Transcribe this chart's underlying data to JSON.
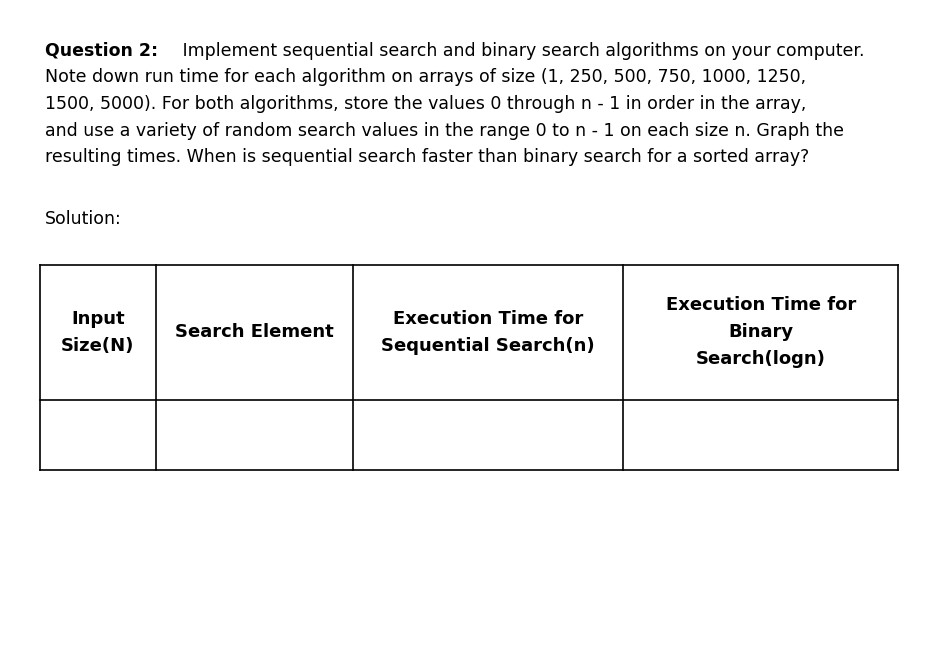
{
  "background_color": "#ffffff",
  "question_bold": "Question 2:",
  "line1_rest": " Implement sequential search and binary search algorithms on your computer.",
  "lines_normal": [
    "Note down run time for each algorithm on arrays of size (1, 250, 500, 750, 1000, 1250,",
    "1500, 5000). For both algorithms, store the values 0 through n - 1 in order in the array,",
    "and use a variety of random search values in the range 0 to n - 1 on each size n. Graph the",
    "resulting times. When is sequential search faster than binary search for a sorted array?"
  ],
  "solution_label": "Solution:",
  "col_headers": [
    [
      "Input",
      "Size(N)"
    ],
    [
      "Search Element"
    ],
    [
      "Execution Time for",
      "Sequential Search(n)"
    ],
    [
      "Execution Time for",
      "Binary",
      "Search(logn)"
    ]
  ],
  "font_size": 12.5,
  "font_size_table": 13.0
}
